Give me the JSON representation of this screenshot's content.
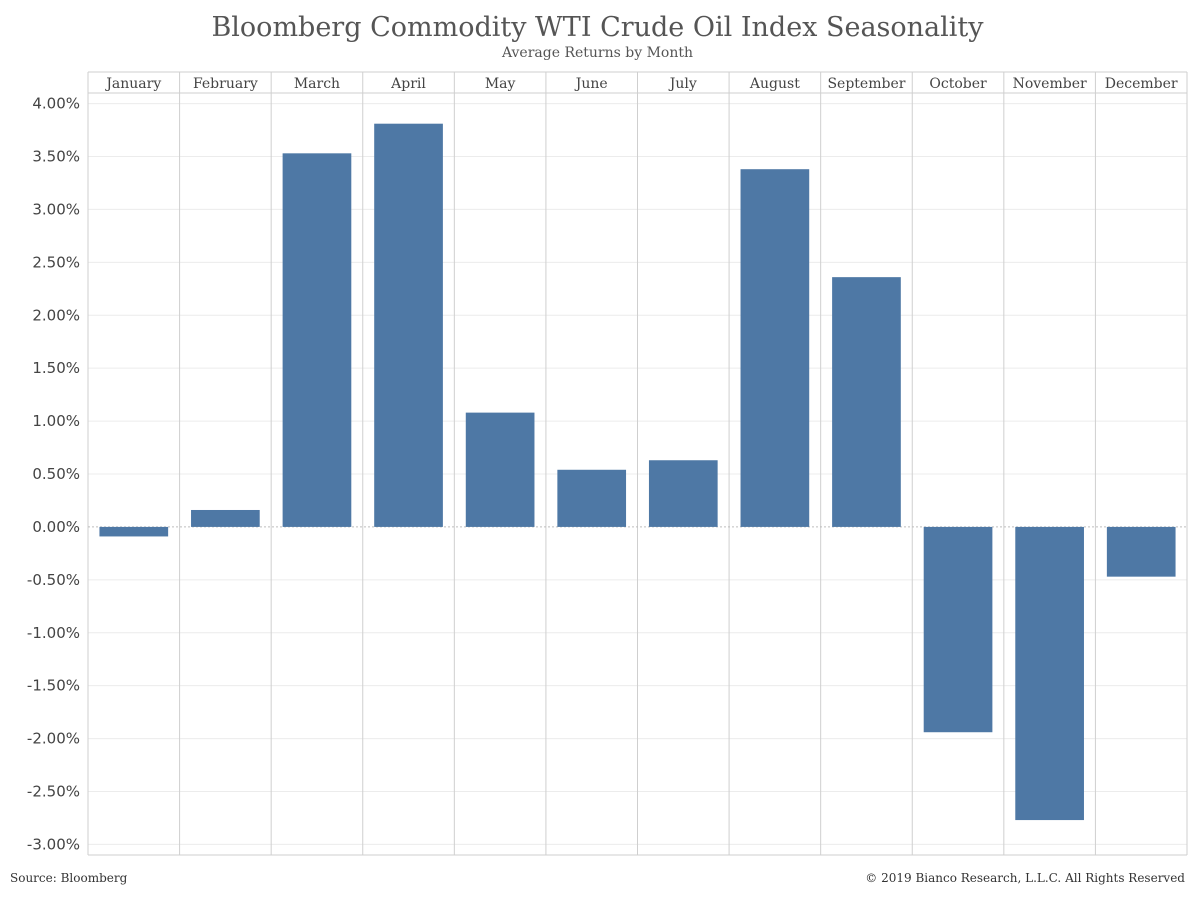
{
  "header": {
    "title": "Bloomberg Commodity WTI Crude Oil Index Seasonality",
    "subtitle": "Average Returns by Month"
  },
  "footer": {
    "source": "Source: Bloomberg",
    "copyright": "© 2019 Bianco Research, L.L.C. All Rights Reserved"
  },
  "colors": {
    "bar": "#4e78a5",
    "grid": "#ececec",
    "divider": "#cfcfcf",
    "zero_line": "#bdbdbd"
  },
  "chart_data": {
    "type": "bar",
    "title": "Bloomberg Commodity WTI Crude Oil Index Seasonality",
    "subtitle": "Average Returns by Month",
    "categories": [
      "January",
      "February",
      "March",
      "April",
      "May",
      "June",
      "July",
      "August",
      "September",
      "October",
      "November",
      "December"
    ],
    "values": [
      -0.09,
      0.16,
      3.53,
      3.81,
      1.08,
      0.54,
      0.63,
      3.38,
      2.36,
      -1.94,
      -2.77,
      -0.47
    ],
    "value_unit": "%",
    "ylim": [
      -3.1,
      4.1
    ],
    "yticks": [
      "4.00%",
      "3.50%",
      "3.00%",
      "2.50%",
      "2.00%",
      "1.50%",
      "1.00%",
      "0.50%",
      "0.00%",
      "-0.50%",
      "-1.00%",
      "-1.50%",
      "-2.00%",
      "-2.50%",
      "-3.00%"
    ],
    "ytick_values": [
      4.0,
      3.5,
      3.0,
      2.5,
      2.0,
      1.5,
      1.0,
      0.5,
      0.0,
      -0.5,
      -1.0,
      -1.5,
      -2.0,
      -2.5,
      -3.0
    ],
    "xlabel": "",
    "ylabel": "",
    "grid": true,
    "legend": "none",
    "category_axis_position": "top"
  }
}
